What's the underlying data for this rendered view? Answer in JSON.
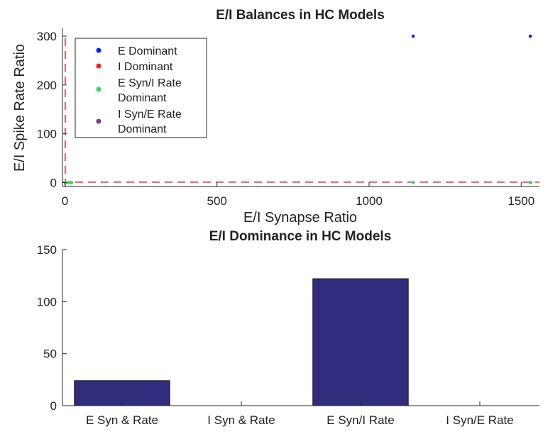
{
  "colors": {
    "e_dominant": "#0022ff",
    "i_dominant": "#ff1a1a",
    "e_syn_i_rate": "#33dd55",
    "i_syn_e_rate": "#7a3d8c",
    "bar_fill": "#312d7e",
    "threshold_line": "#e0303a"
  },
  "chart_data": [
    {
      "type": "scatter",
      "title": "E/I Balances in HC Models",
      "xlabel": "E/I Synapse Ratio",
      "ylabel": "E/I Spike Rate Ratio",
      "xlim": [
        -8,
        1560
      ],
      "ylim": [
        -8,
        316
      ],
      "xticks": [
        0,
        500,
        1000,
        1500
      ],
      "yticks": [
        0,
        100,
        200,
        300
      ],
      "legend_position": "top-left",
      "threshold_lines": {
        "x": 1,
        "y": 1
      },
      "series": [
        {
          "name": "E Dominant",
          "color_key": "e_dominant",
          "points": [
            [
              1145,
              300
            ],
            [
              1530,
              300
            ]
          ]
        },
        {
          "name": "I Dominant",
          "color_key": "i_dominant",
          "points": []
        },
        {
          "name": "E Syn/I Rate Dominant",
          "color_key": "e_syn_i_rate",
          "points": [
            [
              2,
              0
            ],
            [
              5,
              0
            ],
            [
              9,
              0
            ],
            [
              14,
              0
            ],
            [
              18,
              0
            ],
            [
              22,
              0
            ],
            [
              1145,
              0
            ],
            [
              1530,
              0
            ],
            [
              1532,
              0
            ]
          ]
        },
        {
          "name": "I Syn/E Rate Dominant",
          "color_key": "i_syn_e_rate",
          "points": []
        }
      ],
      "legend_entries": [
        {
          "lines": [
            "E Dominant"
          ],
          "color_key": "e_dominant"
        },
        {
          "lines": [
            "I Dominant"
          ],
          "color_key": "i_dominant"
        },
        {
          "lines": [
            "E Syn/I Rate",
            "Dominant"
          ],
          "color_key": "e_syn_i_rate"
        },
        {
          "lines": [
            "I Syn/E Rate",
            "Dominant"
          ],
          "color_key": "i_syn_e_rate"
        }
      ]
    },
    {
      "type": "bar",
      "title": "E/I Dominance in HC Models",
      "xlabel": "",
      "ylabel": "",
      "categories": [
        "E Syn & Rate",
        "I Syn & Rate",
        "E Syn/I Rate",
        "I Syn/E Rate"
      ],
      "values": [
        24,
        0,
        122,
        0
      ],
      "ylim": [
        0,
        150
      ],
      "yticks": [
        0,
        50,
        100,
        150
      ]
    }
  ]
}
